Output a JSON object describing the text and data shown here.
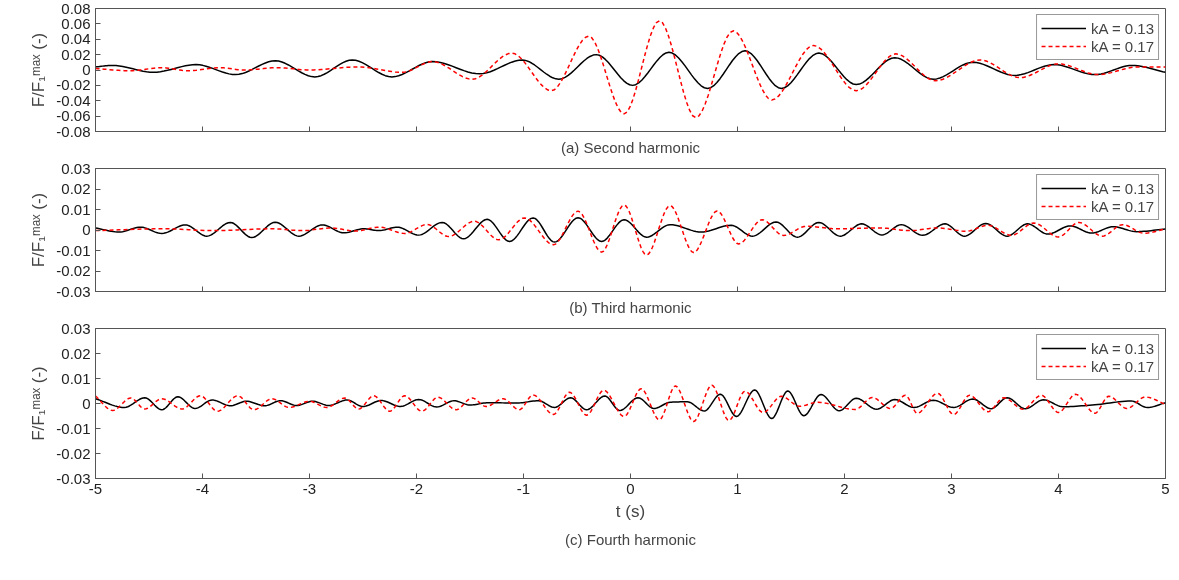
{
  "chart_data": [
    {
      "type": "line",
      "title": "(a) Second harmonic",
      "ylabel": "F/F₁ᵐᵃˣ (-)",
      "xlim": [
        -5,
        5
      ],
      "xticks": [
        -5,
        -4,
        -3,
        -2,
        -1,
        0,
        1,
        2,
        3,
        4,
        5
      ],
      "ylim": [
        -0.08,
        0.08
      ],
      "yticks": [
        -0.08,
        -0.06,
        -0.04,
        -0.02,
        0,
        0.02,
        0.04,
        0.06,
        0.08
      ],
      "tick_labels": "y",
      "legend": "top right",
      "grid": false,
      "series": [
        {
          "name": "kA = 0.13",
          "color": "#000000",
          "line_style": "solid",
          "x": [
            -5,
            -4.84,
            -4.46,
            -4.06,
            -3.69,
            -3.32,
            -2.95,
            -2.6,
            -2.23,
            -1.85,
            -1.41,
            -1.01,
            -0.67,
            -0.32,
            0.02,
            0.36,
            0.72,
            1.07,
            1.41,
            1.76,
            2.11,
            2.47,
            2.83,
            3.2,
            3.59,
            3.96,
            4.34,
            4.69,
            5
          ],
          "values": [
            0.004,
            0.006,
            -0.003,
            0.007,
            -0.006,
            0.012,
            -0.009,
            0.013,
            -0.009,
            0.011,
            -0.005,
            0.013,
            -0.012,
            0.02,
            -0.02,
            0.023,
            -0.024,
            0.025,
            -0.024,
            0.022,
            -0.019,
            0.016,
            -0.012,
            0.01,
            -0.007,
            0.007,
            -0.006,
            0.006,
            -0.003
          ]
        },
        {
          "name": "kA = 0.17",
          "color": "#ff0000",
          "line_style": "dashed",
          "x": [
            -5,
            -4.68,
            -4.38,
            -4.13,
            -3.84,
            -3.61,
            -3.3,
            -3.0,
            -2.55,
            -2.13,
            -1.85,
            -1.48,
            -1.11,
            -0.74,
            -0.39,
            -0.06,
            0.27,
            0.61,
            0.96,
            1.32,
            1.71,
            2.11,
            2.48,
            2.85,
            3.27,
            3.64,
            4.0,
            4.37,
            4.74,
            5
          ],
          "values": [
            0.002,
            -0.001,
            0.003,
            -0.001,
            0.003,
            0.0,
            0.003,
            0.0,
            0.004,
            -0.003,
            0.011,
            -0.012,
            0.022,
            -0.027,
            0.044,
            -0.057,
            0.064,
            -0.062,
            0.051,
            -0.039,
            0.032,
            -0.027,
            0.021,
            -0.014,
            0.013,
            -0.01,
            0.008,
            -0.006,
            0.004,
            0.004
          ]
        }
      ]
    },
    {
      "type": "line",
      "title": "(b) Third harmonic",
      "ylabel": "F/F₁ᵐᵃˣ (-)",
      "xlim": [
        -5,
        5
      ],
      "xticks": [
        -5,
        -4,
        -3,
        -2,
        -1,
        0,
        1,
        2,
        3,
        4,
        5
      ],
      "ylim": [
        -0.03,
        0.03
      ],
      "yticks": [
        -0.03,
        -0.02,
        -0.01,
        0,
        0.01,
        0.02,
        0.03
      ],
      "tick_labels": "y",
      "legend": "top right",
      "grid": false,
      "series": [
        {
          "name": "kA = 0.13",
          "color": "#000000",
          "line_style": "solid",
          "x": [
            -5,
            -4.78,
            -4.58,
            -4.38,
            -4.16,
            -3.96,
            -3.74,
            -3.54,
            -3.32,
            -3.1,
            -2.88,
            -2.68,
            -2.49,
            -2.35,
            -2.18,
            -1.98,
            -1.76,
            -1.56,
            -1.34,
            -1.13,
            -0.91,
            -0.71,
            -0.49,
            -0.27,
            -0.06,
            0.15,
            0.37,
            0.66,
            0.94,
            1.14,
            1.36,
            1.56,
            1.76,
            1.96,
            2.16,
            2.35,
            2.53,
            2.73,
            2.94,
            3.12,
            3.32,
            3.52,
            3.71,
            3.9,
            4.11,
            4.31,
            4.51,
            4.73,
            5
          ],
          "values": [
            0.001,
            -0.001,
            0.0014,
            -0.0017,
            0.0025,
            -0.003,
            0.0037,
            -0.0037,
            0.0038,
            -0.003,
            0.0025,
            -0.0014,
            0.0006,
            -0.0003,
            0.0014,
            -0.0025,
            0.0037,
            -0.0043,
            0.0052,
            -0.0056,
            0.0059,
            -0.0059,
            0.006,
            -0.0056,
            0.005,
            -0.0035,
            0.0026,
            -0.001,
            0.0023,
            -0.003,
            0.0039,
            -0.0035,
            0.0037,
            -0.003,
            0.003,
            -0.0024,
            0.0026,
            -0.0026,
            0.003,
            -0.003,
            0.0032,
            -0.003,
            0.003,
            -0.002,
            0.002,
            -0.0015,
            0.0016,
            -0.0008,
            0.0005
          ]
        },
        {
          "name": "kA = 0.17",
          "color": "#ff0000",
          "line_style": "dashed",
          "x": [
            -5,
            -4.35,
            -3.91,
            -3.34,
            -3.07,
            -2.8,
            -2.57,
            -2.35,
            -2.11,
            -1.9,
            -1.7,
            -1.46,
            -1.23,
            -0.99,
            -0.72,
            -0.49,
            -0.27,
            -0.06,
            0.15,
            0.37,
            0.59,
            0.81,
            1.01,
            1.23,
            1.43,
            1.64,
            1.93,
            2.33,
            2.61,
            2.87,
            3.14,
            3.34,
            3.56,
            3.77,
            4.0,
            4.19,
            4.41,
            4.6,
            4.8,
            5
          ],
          "values": [
            -0.0003,
            0.0006,
            -0.0003,
            0.0006,
            -0.0003,
            0.001,
            -0.0005,
            0.0014,
            -0.0017,
            0.0027,
            -0.0032,
            0.0043,
            -0.0048,
            0.0059,
            -0.0072,
            0.0092,
            -0.0108,
            0.0122,
            -0.0122,
            0.0119,
            -0.011,
            0.0093,
            -0.0068,
            0.005,
            -0.0027,
            0.0018,
            0.0006,
            0.001,
            -0.0003,
            0.001,
            -0.0006,
            0.0023,
            -0.0026,
            0.0034,
            -0.0034,
            0.0037,
            -0.003,
            0.0026,
            -0.0016,
            0.0005
          ]
        }
      ]
    },
    {
      "type": "line",
      "title": "(c) Fourth harmonic",
      "xlabel": "t (s)",
      "ylabel": "F/F₁ᵐᵃˣ (-)",
      "xlim": [
        -5,
        5
      ],
      "xticks": [
        -5,
        -4,
        -3,
        -2,
        -1,
        0,
        1,
        2,
        3,
        4,
        5
      ],
      "ylim": [
        -0.03,
        0.03
      ],
      "yticks": [
        -0.03,
        -0.02,
        -0.01,
        0,
        0.01,
        0.02,
        0.03
      ],
      "legend": "top right",
      "grid": false,
      "series": [
        {
          "name": "kA = 0.13",
          "color": "#000000",
          "line_style": "solid",
          "x": [
            -5,
            -4.73,
            -4.54,
            -4.38,
            -4.23,
            -4.07,
            -3.91,
            -3.74,
            -3.59,
            -3.42,
            -3.27,
            -3.12,
            -2.97,
            -2.82,
            -2.65,
            -2.5,
            -2.33,
            -2.15,
            -1.98,
            -1.81,
            -1.65,
            -1.5,
            -1.33,
            -1.06,
            -0.86,
            -0.71,
            -0.56,
            -0.41,
            -0.24,
            -0.1,
            0.07,
            0.22,
            0.37,
            0.53,
            0.69,
            0.84,
            0.99,
            1.16,
            1.32,
            1.47,
            1.62,
            1.78,
            1.95,
            2.11,
            2.3,
            2.47,
            2.65,
            2.83,
            3.02,
            3.2,
            3.37,
            3.52,
            3.69,
            3.86,
            4.04,
            4.34,
            4.68,
            4.83,
            5
          ],
          "values": [
            0.0019,
            -0.0016,
            0.0023,
            -0.0025,
            0.0027,
            -0.002,
            0.0014,
            -0.0009,
            0.0009,
            -0.0009,
            0.0011,
            -0.0008,
            0.0009,
            -0.0008,
            0.0014,
            -0.0012,
            0.0012,
            -0.0012,
            0.0016,
            -0.0014,
            0.0011,
            -0.0006,
            0.0003,
            0.0002,
            0.0011,
            -0.0016,
            0.0023,
            -0.0025,
            0.003,
            -0.0028,
            0.0023,
            -0.002,
            0.0005,
            0.0007,
            -0.003,
            0.0037,
            -0.0052,
            0.0054,
            -0.006,
            0.005,
            -0.0049,
            0.0036,
            -0.0029,
            0.0021,
            -0.0023,
            0.0016,
            -0.0016,
            0.0013,
            -0.0016,
            0.0018,
            -0.0021,
            0.0023,
            -0.0021,
            0.0015,
            -0.0013,
            -0.0005,
            0.001,
            -0.0016,
            0.0003
          ]
        },
        {
          "name": "kA = 0.17",
          "color": "#ff0000",
          "line_style": "dashed",
          "x": [
            -5,
            -4.84,
            -4.67,
            -4.54,
            -4.38,
            -4.19,
            -4.02,
            -3.86,
            -3.67,
            -3.52,
            -3.35,
            -3.19,
            -3.0,
            -2.84,
            -2.67,
            -2.54,
            -2.4,
            -2.25,
            -2.11,
            -1.95,
            -1.8,
            -1.63,
            -1.48,
            -1.35,
            -1.19,
            -1.04,
            -0.91,
            -0.72,
            -0.57,
            -0.41,
            -0.25,
            -0.06,
            0.1,
            0.27,
            0.42,
            0.59,
            0.76,
            0.92,
            1.07,
            1.24,
            1.41,
            1.58,
            1.75,
            2.1,
            2.26,
            2.43,
            2.57,
            2.68,
            2.87,
            3.02,
            3.17,
            3.34,
            3.49,
            3.67,
            3.84,
            4.0,
            4.16,
            4.34,
            4.47,
            4.64,
            4.81,
            5
          ],
          "values": [
            0.003,
            -0.0028,
            0.0022,
            -0.0022,
            0.0019,
            -0.0022,
            0.0031,
            -0.0031,
            0.0031,
            -0.0025,
            0.0019,
            -0.0016,
            0.0009,
            -0.0016,
            0.0022,
            -0.0022,
            0.0031,
            -0.0031,
            0.0031,
            -0.0031,
            0.0025,
            -0.0025,
            0.0022,
            -0.0012,
            0.0019,
            -0.0025,
            0.0034,
            -0.0044,
            0.0045,
            -0.0047,
            0.0053,
            -0.0052,
            0.0059,
            -0.0065,
            0.007,
            -0.0072,
            0.0073,
            -0.0068,
            0.0049,
            -0.0036,
            0.0029,
            -0.0011,
            0.0005,
            -0.0024,
            0.0024,
            -0.002,
            0.0033,
            -0.0039,
            0.0041,
            -0.0044,
            0.0033,
            -0.0033,
            0.0023,
            -0.0023,
            0.0033,
            -0.0036,
            0.0037,
            -0.0039,
            0.0029,
            -0.002,
            0.0026,
            -0.0003
          ]
        }
      ]
    }
  ]
}
